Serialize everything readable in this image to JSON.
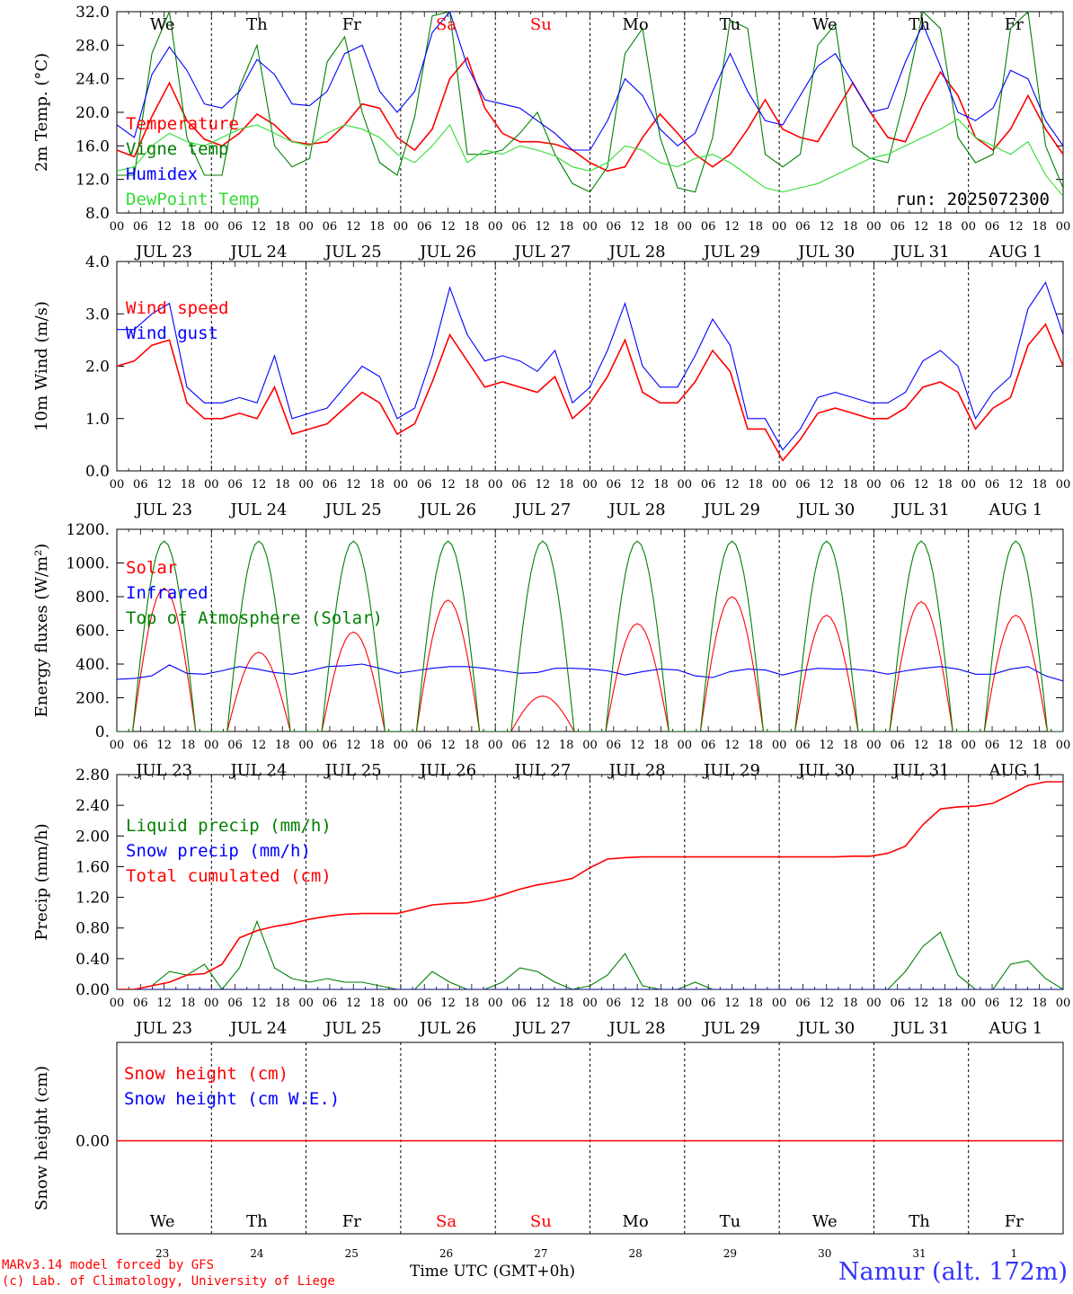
{
  "footer": {
    "model_line": "MARv3.14 model forced by GFS",
    "lab_line": "(c) Lab. of Climatology, University of Liege",
    "xlabel": "Time UTC (GMT+0h)",
    "station": "Namur (alt. 172m)"
  },
  "colors": {
    "red": "#ff0000",
    "blue": "#0000ff",
    "green": "#008000",
    "lightgreen": "#33dd33",
    "axis": "#000000",
    "weekend_text": "#ff0000"
  },
  "time_axis": {
    "hour_ticks": [
      "00",
      "06",
      "12",
      "18"
    ],
    "dates": [
      "JUL 23",
      "JUL 24",
      "JUL 25",
      "JUL 26",
      "JUL 27",
      "JUL 28",
      "JUL 29",
      "JUL 30",
      "JUL 31",
      "AUG  1"
    ],
    "weekdays": [
      {
        "label": "We",
        "weekend": false
      },
      {
        "label": "Th",
        "weekend": false
      },
      {
        "label": "Fr",
        "weekend": false
      },
      {
        "label": "Sa",
        "weekend": true
      },
      {
        "label": "Su",
        "weekend": true
      },
      {
        "label": "Mo",
        "weekend": false
      },
      {
        "label": "Tu",
        "weekend": false
      },
      {
        "label": "We",
        "weekend": false
      },
      {
        "label": "Th",
        "weekend": false
      },
      {
        "label": "Fr",
        "weekend": false
      }
    ],
    "day_numbers": [
      "23",
      "24",
      "25",
      "26",
      "27",
      "28",
      "29",
      "30",
      "31",
      "1"
    ]
  },
  "chart_data": [
    {
      "type": "line",
      "ylabel": "2m Temp. (°C)",
      "ylim": [
        8,
        32
      ],
      "yticks": [
        "8.0",
        "12.0",
        "16.0",
        "20.0",
        "24.0",
        "28.0",
        "32.0"
      ],
      "annotation": "run: 2025072300",
      "x_hours_start": "2025-07-23 00 UTC",
      "x_step_hours": 6,
      "series": [
        {
          "name": "Temperature",
          "color": "red",
          "values": [
            15.5,
            14.7,
            19.5,
            23.5,
            19.0,
            16.8,
            16.0,
            17.5,
            19.8,
            18.5,
            16.5,
            16.2,
            16.5,
            18.5,
            21.0,
            20.5,
            17.0,
            15.5,
            18.0,
            24.0,
            26.5,
            20.5,
            17.5,
            16.5,
            16.5,
            16.2,
            15.5,
            14.0,
            13.0,
            13.5,
            17.0,
            19.8,
            17.5,
            15.0,
            13.5,
            15.0,
            18.0,
            21.5,
            18.0,
            17.0,
            16.5,
            20.0,
            23.5,
            20.0,
            17.0,
            16.5,
            21.0,
            24.8,
            22.0,
            17.0,
            15.5,
            18.0,
            22.0,
            18.0,
            15.0
          ]
        },
        {
          "name": "Vigne temp",
          "color": "green",
          "values": [
            12.5,
            12.5,
            27.0,
            32.0,
            17.0,
            12.5,
            12.5,
            23.0,
            28.0,
            16.0,
            13.5,
            14.5,
            26.0,
            29.0,
            20.0,
            14.0,
            12.5,
            19.5,
            31.5,
            32.0,
            15.0,
            15.0,
            15.5,
            17.5,
            20.0,
            15.0,
            11.5,
            10.5,
            13.5,
            27.0,
            30.0,
            17.0,
            11.0,
            10.5,
            17.0,
            31.0,
            30.0,
            15.0,
            13.5,
            15.0,
            28.0,
            30.5,
            16.0,
            14.5,
            14.0,
            22.0,
            32.0,
            30.0,
            17.0,
            14.0,
            15.0,
            30.0,
            32.0,
            16.0,
            11.0
          ]
        },
        {
          "name": "Humidex",
          "color": "blue",
          "values": [
            18.5,
            17.0,
            24.5,
            27.8,
            25.0,
            21.0,
            20.5,
            22.5,
            26.3,
            24.5,
            21.0,
            20.8,
            22.5,
            27.0,
            28.0,
            22.5,
            20.0,
            22.5,
            29.5,
            32.0,
            25.5,
            21.5,
            21.0,
            20.5,
            19.0,
            17.5,
            15.5,
            15.5,
            19.0,
            24.0,
            22.0,
            18.0,
            16.0,
            17.5,
            22.5,
            27.0,
            22.5,
            19.0,
            18.5,
            22.0,
            25.5,
            27.0,
            23.5,
            20.0,
            20.5,
            26.0,
            30.5,
            25.5,
            20.0,
            19.0,
            20.5,
            25.0,
            24.0,
            19.0,
            16.0
          ]
        },
        {
          "name": "DewPoint Temp",
          "color": "lightgreen",
          "values": [
            13.0,
            13.5,
            16.0,
            17.5,
            16.5,
            16.0,
            17.0,
            18.0,
            18.5,
            17.5,
            16.5,
            16.0,
            17.5,
            18.5,
            18.0,
            17.0,
            15.0,
            14.0,
            16.0,
            18.5,
            14.0,
            15.5,
            15.0,
            16.0,
            15.5,
            14.8,
            13.5,
            13.0,
            14.0,
            16.0,
            15.5,
            14.0,
            13.5,
            14.5,
            15.0,
            14.0,
            12.5,
            11.0,
            10.5,
            11.0,
            11.5,
            12.5,
            13.5,
            14.5,
            15.0,
            16.0,
            17.0,
            18.0,
            19.2,
            17.0,
            16.0,
            15.0,
            16.5,
            12.5,
            10.0
          ]
        }
      ]
    },
    {
      "type": "line",
      "ylabel": "10m Wind (m/s)",
      "ylim": [
        0,
        4
      ],
      "yticks": [
        "0.0",
        "1.0",
        "2.0",
        "3.0",
        "4.0"
      ],
      "series": [
        {
          "name": "Wind speed",
          "color": "red",
          "values": [
            2.0,
            2.1,
            2.4,
            2.5,
            1.3,
            1.0,
            1.0,
            1.1,
            1.0,
            1.6,
            0.7,
            0.8,
            0.9,
            1.2,
            1.5,
            1.3,
            0.7,
            0.9,
            1.7,
            2.6,
            2.1,
            1.6,
            1.7,
            1.6,
            1.5,
            1.8,
            1.0,
            1.3,
            1.8,
            2.5,
            1.5,
            1.3,
            1.3,
            1.7,
            2.3,
            1.9,
            0.8,
            0.8,
            0.2,
            0.6,
            1.1,
            1.2,
            1.1,
            1.0,
            1.0,
            1.2,
            1.6,
            1.7,
            1.5,
            0.8,
            1.2,
            1.4,
            2.4,
            2.8,
            2.0
          ]
        },
        {
          "name": "Wind gust",
          "color": "blue",
          "values": [
            2.7,
            2.7,
            3.0,
            3.2,
            1.6,
            1.3,
            1.3,
            1.4,
            1.3,
            2.2,
            1.0,
            1.1,
            1.2,
            1.6,
            2.0,
            1.8,
            1.0,
            1.2,
            2.2,
            3.5,
            2.6,
            2.1,
            2.2,
            2.1,
            1.9,
            2.3,
            1.3,
            1.6,
            2.3,
            3.2,
            2.0,
            1.6,
            1.6,
            2.2,
            2.9,
            2.4,
            1.0,
            1.0,
            0.4,
            0.8,
            1.4,
            1.5,
            1.4,
            1.3,
            1.3,
            1.5,
            2.1,
            2.3,
            2.0,
            1.0,
            1.5,
            1.8,
            3.1,
            3.6,
            2.6
          ]
        }
      ]
    },
    {
      "type": "line",
      "ylabel": "Energy fluxes (W/m²)",
      "ylim": [
        0,
        1200
      ],
      "yticks": [
        "0.",
        "200.",
        "400.",
        "600.",
        "800.",
        "1000.",
        "1200."
      ],
      "series": [
        {
          "name": "Solar",
          "color": "red",
          "day_peaks": [
            850,
            470,
            590,
            780,
            210,
            640,
            800,
            690,
            770,
            690
          ]
        },
        {
          "name": "Infrared",
          "color": "blue",
          "values": [
            310,
            315,
            330,
            395,
            345,
            340,
            360,
            385,
            370,
            350,
            340,
            360,
            385,
            390,
            400,
            375,
            345,
            360,
            375,
            385,
            385,
            375,
            360,
            345,
            350,
            375,
            375,
            370,
            360,
            335,
            355,
            370,
            365,
            330,
            320,
            355,
            370,
            365,
            335,
            360,
            375,
            370,
            370,
            360,
            340,
            360,
            375,
            385,
            370,
            340,
            340,
            370,
            385,
            330,
            300
          ]
        },
        {
          "name": "Top of Atmosphere (Solar)",
          "color": "green",
          "day_peak": 1130
        }
      ]
    },
    {
      "type": "line",
      "ylabel": "Precip (mm/h)",
      "ylim": [
        0,
        3
      ],
      "yticks": [
        "0.00",
        "0.40",
        "0.80",
        "1.20",
        "1.60",
        "2.00",
        "2.40",
        "2.80"
      ],
      "series": [
        {
          "name": "Liquid precip (mm/h)",
          "color": "green",
          "values": [
            0,
            0,
            0.05,
            0.25,
            0.2,
            0.35,
            0,
            0.3,
            0.95,
            0.3,
            0.15,
            0.1,
            0.15,
            0.1,
            0.1,
            0.05,
            0,
            0,
            0.25,
            0.1,
            0,
            0,
            0.1,
            0.3,
            0.25,
            0.1,
            0,
            0.05,
            0.2,
            0.5,
            0.05,
            0,
            0,
            0.1,
            0,
            0,
            0,
            0,
            0,
            0,
            0,
            0,
            0,
            0,
            0,
            0.25,
            0.6,
            0.8,
            0.2,
            0,
            0,
            0.35,
            0.4,
            0.15,
            0
          ]
        },
        {
          "name": "Snow precip (mm/h)",
          "color": "blue",
          "values": [
            0,
            0,
            0,
            0,
            0,
            0,
            0,
            0,
            0,
            0,
            0,
            0,
            0,
            0,
            0,
            0,
            0,
            0,
            0,
            0,
            0,
            0,
            0,
            0,
            0,
            0,
            0,
            0,
            0,
            0,
            0,
            0,
            0,
            0,
            0,
            0,
            0,
            0,
            0,
            0,
            0,
            0,
            0,
            0,
            0,
            0,
            0,
            0,
            0,
            0,
            0,
            0,
            0,
            0,
            0
          ]
        },
        {
          "name": "Total cumulated (cm)",
          "color": "red",
          "values": [
            0,
            0,
            0.05,
            0.1,
            0.2,
            0.22,
            0.35,
            0.72,
            0.82,
            0.88,
            0.92,
            0.98,
            1.02,
            1.05,
            1.06,
            1.06,
            1.06,
            1.12,
            1.18,
            1.2,
            1.21,
            1.25,
            1.32,
            1.4,
            1.46,
            1.5,
            1.55,
            1.7,
            1.82,
            1.84,
            1.85,
            1.85,
            1.85,
            1.85,
            1.85,
            1.85,
            1.85,
            1.85,
            1.85,
            1.85,
            1.85,
            1.85,
            1.86,
            1.86,
            1.9,
            2.0,
            2.3,
            2.52,
            2.55,
            2.56,
            2.6,
            2.72,
            2.85,
            2.9,
            2.9
          ]
        }
      ]
    },
    {
      "type": "line",
      "ylabel": "Snow height (cm)",
      "yticks": [
        "0.00"
      ],
      "series": [
        {
          "name": "Snow height (cm)",
          "color": "red",
          "values": [
            0
          ]
        },
        {
          "name": "Snow height (cm W.E.)",
          "color": "blue",
          "values": [
            0
          ]
        }
      ]
    }
  ]
}
